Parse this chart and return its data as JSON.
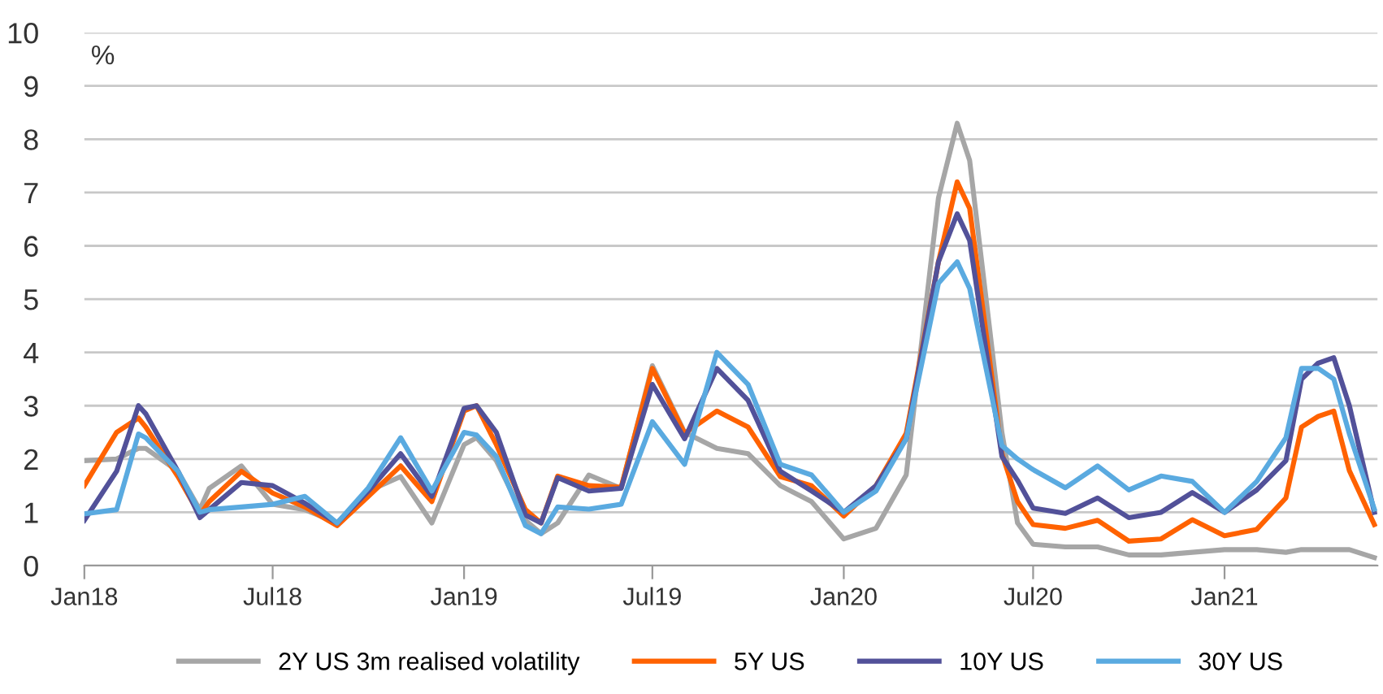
{
  "chart_data": {
    "type": "line",
    "ylabel": "%",
    "x": [
      "2018-01-01",
      "2018-02-01",
      "2018-02-22",
      "2018-03-01",
      "2018-04-01",
      "2018-04-22",
      "2018-05-01",
      "2018-06-01",
      "2018-07-01",
      "2018-08-01",
      "2018-09-01",
      "2018-10-01",
      "2018-11-01",
      "2018-12-01",
      "2019-01-01",
      "2019-01-13",
      "2019-02-01",
      "2019-03-01",
      "2019-03-16",
      "2019-04-01",
      "2019-05-01",
      "2019-06-01",
      "2019-07-01",
      "2019-08-01",
      "2019-09-01",
      "2019-10-01",
      "2019-11-01",
      "2019-12-01",
      "2020-01-01",
      "2020-02-01",
      "2020-03-01",
      "2020-04-01",
      "2020-04-19",
      "2020-05-01",
      "2020-06-01",
      "2020-06-16",
      "2020-07-01",
      "2020-08-01",
      "2020-09-01",
      "2020-10-01",
      "2020-11-01",
      "2020-12-01",
      "2021-01-01",
      "2021-02-01",
      "2021-03-01",
      "2021-03-16",
      "2021-04-01",
      "2021-04-16",
      "2021-05-01",
      "2021-05-25"
    ],
    "series": [
      {
        "name": "2Y US 3m realised volatility",
        "color": "#a6a6a6",
        "values": [
          1.97,
          2.0,
          2.2,
          2.2,
          1.77,
          1.05,
          1.45,
          1.87,
          1.15,
          1.05,
          0.8,
          1.4,
          1.67,
          0.8,
          2.27,
          2.4,
          1.97,
          0.85,
          0.6,
          0.8,
          1.7,
          1.45,
          3.75,
          2.5,
          2.2,
          2.1,
          1.5,
          1.2,
          0.5,
          0.7,
          1.7,
          6.9,
          8.3,
          7.6,
          2.5,
          0.8,
          0.4,
          0.35,
          0.35,
          0.2,
          0.2,
          0.25,
          0.3,
          0.3,
          0.25,
          0.3,
          0.3,
          0.3,
          0.3,
          0.15
        ]
      },
      {
        "name": "5Y US",
        "color": "#ff6200",
        "values": [
          1.5,
          2.5,
          2.77,
          2.6,
          1.67,
          0.95,
          1.2,
          1.77,
          1.36,
          1.1,
          0.75,
          1.3,
          1.87,
          1.2,
          2.9,
          3.0,
          2.27,
          1.05,
          0.8,
          1.68,
          1.5,
          1.47,
          3.7,
          2.48,
          2.9,
          2.6,
          1.67,
          1.5,
          0.93,
          1.5,
          2.48,
          5.7,
          7.2,
          6.7,
          2.1,
          1.2,
          0.77,
          0.7,
          0.85,
          0.46,
          0.5,
          0.86,
          0.56,
          0.68,
          1.27,
          2.6,
          2.8,
          2.9,
          1.78,
          0.77
        ]
      },
      {
        "name": "10Y US",
        "color": "#525199",
        "values": [
          0.85,
          1.77,
          3.0,
          2.85,
          1.77,
          0.9,
          1.05,
          1.56,
          1.5,
          1.17,
          0.8,
          1.4,
          2.1,
          1.3,
          2.95,
          3.0,
          2.5,
          0.95,
          0.8,
          1.65,
          1.4,
          1.45,
          3.4,
          2.38,
          3.7,
          3.1,
          1.77,
          1.4,
          1.0,
          1.5,
          2.38,
          5.7,
          6.6,
          6.1,
          2.05,
          1.6,
          1.08,
          0.98,
          1.27,
          0.9,
          1.0,
          1.37,
          1.0,
          1.42,
          1.97,
          3.5,
          3.8,
          3.9,
          3.0,
          1.0
        ]
      },
      {
        "name": "30Y US",
        "color": "#5aaae0",
        "values": [
          0.97,
          1.05,
          2.47,
          2.4,
          1.77,
          1.0,
          1.05,
          1.1,
          1.15,
          1.3,
          0.8,
          1.46,
          2.4,
          1.4,
          2.5,
          2.45,
          2.05,
          0.75,
          0.6,
          1.1,
          1.06,
          1.15,
          2.7,
          1.9,
          4.0,
          3.4,
          1.9,
          1.7,
          1.0,
          1.4,
          2.38,
          5.3,
          5.7,
          5.2,
          2.25,
          2.0,
          1.8,
          1.46,
          1.87,
          1.42,
          1.68,
          1.58,
          1.0,
          1.58,
          2.4,
          3.7,
          3.7,
          3.5,
          2.47,
          1.06
        ]
      }
    ],
    "xlim": [
      "2018-01-01",
      "2021-05-28"
    ],
    "xticks": [
      {
        "value": "2018-01-01",
        "label": "Jan18"
      },
      {
        "value": "2018-07-01",
        "label": "Jul18"
      },
      {
        "value": "2019-01-01",
        "label": "Jan19"
      },
      {
        "value": "2019-07-01",
        "label": "Jul19"
      },
      {
        "value": "2020-01-01",
        "label": "Jan20"
      },
      {
        "value": "2020-07-01",
        "label": "Jul20"
      },
      {
        "value": "2021-01-01",
        "label": "Jan21"
      }
    ],
    "ylim": [
      0,
      10
    ],
    "yticks": [
      0,
      1,
      2,
      3,
      4,
      5,
      6,
      7,
      8,
      9,
      10
    ],
    "grid": "y",
    "legend": "bottom",
    "line_style": "solid",
    "marker": "none"
  }
}
